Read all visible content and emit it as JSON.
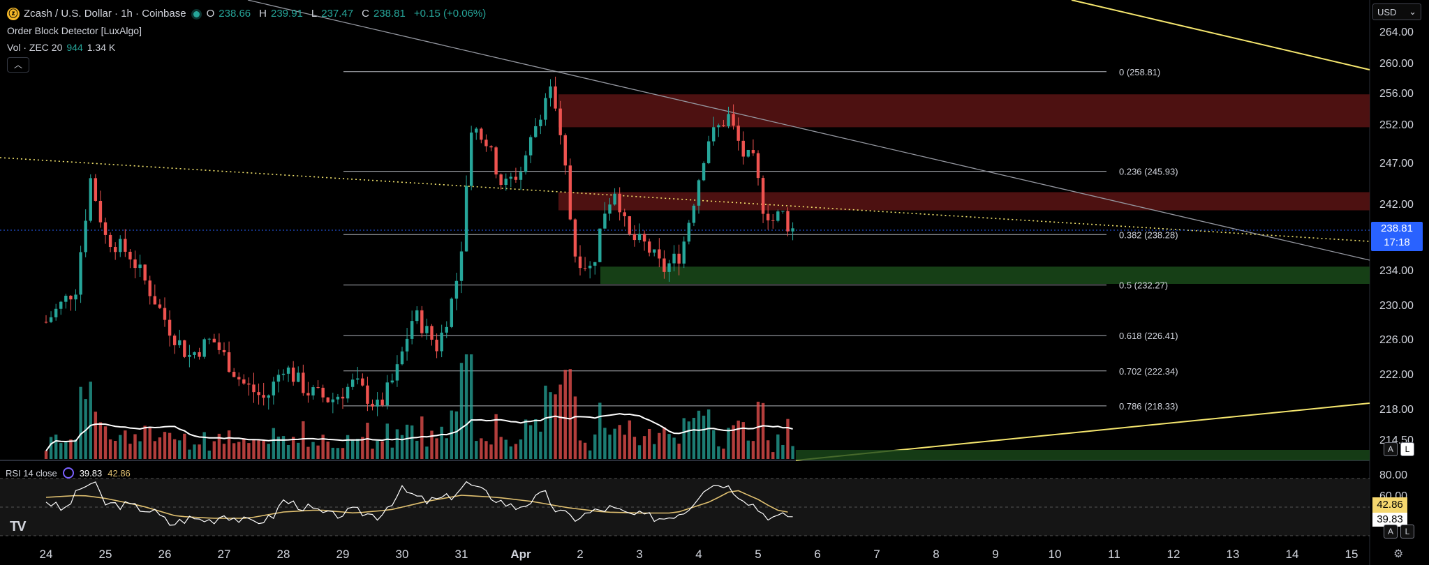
{
  "header": {
    "symbol_icon": "zcash-coin-icon",
    "title": "Zcash / U.S. Dollar · 1h · Coinbase",
    "open_label": "O",
    "open": "238.66",
    "high_label": "H",
    "high": "239.91",
    "low_label": "L",
    "low": "237.47",
    "close_label": "C",
    "close": "238.81",
    "change": "+0.15 (+0.06%)",
    "indicator": "Order Block Detector [LuxAlgo]",
    "vol_label": "Vol · ZEC 20",
    "vol_1": "944",
    "vol_2": "1.34 K",
    "collapse_icon": "chevron-up-icon"
  },
  "currency_select": {
    "value": "USD",
    "icon": "chevron-down-icon"
  },
  "price_tag": {
    "price": "238.81",
    "countdown": "17:18",
    "color": "#2962ff"
  },
  "rsi": {
    "label": "RSI 14 close",
    "value": "39.83",
    "ma_value": "42.86",
    "tag_ma": "42.86",
    "tag_rsi": "39.83",
    "axis": [
      "80.00",
      "60.00"
    ]
  },
  "scale_buttons": {
    "auto": "A",
    "log": "L"
  },
  "logo": "TV",
  "colors": {
    "up": "#26a69a",
    "down": "#ef5350",
    "fib": "#d1d4dc",
    "trend_yellow": "#f5e66e",
    "rsi_line": "#ffffff",
    "rsi_ma": "#e0c070",
    "bear_ob": "#5a1414",
    "bull_ob": "#1a4a1a",
    "accent": "#2962ff"
  },
  "chart_data": {
    "type": "candlestick",
    "title": "Zcash / U.S. Dollar · 1h · Coinbase",
    "y_ticks": [
      "264.00",
      "260.00",
      "256.00",
      "252.00",
      "247.00",
      "242.00",
      "238.81",
      "234.00",
      "230.00",
      "226.00",
      "222.00",
      "218.00",
      "214.50"
    ],
    "x_ticks": [
      "24",
      "25",
      "26",
      "27",
      "28",
      "29",
      "30",
      "31",
      "Apr",
      "2",
      "3",
      "4",
      "5",
      "6",
      "7",
      "8",
      "9",
      "10",
      "11",
      "12",
      "13",
      "14",
      "15"
    ],
    "fib_levels": [
      {
        "label": "0 (258.81)",
        "price": 258.81
      },
      {
        "label": "0.236 (245.93)",
        "price": 245.93
      },
      {
        "label": "0.382 (238.28)",
        "price": 238.28
      },
      {
        "label": "0.5 (232.27)",
        "price": 232.27
      },
      {
        "label": "0.618 (226.41)",
        "price": 226.41
      },
      {
        "label": "0.702 (222.34)",
        "price": 222.34
      },
      {
        "label": "0.786 (218.33)",
        "price": 218.33
      }
    ],
    "order_blocks": [
      {
        "kind": "bearish",
        "top": 255.8,
        "bottom": 251.6
      },
      {
        "kind": "bearish",
        "top": 243.4,
        "bottom": 241.2
      },
      {
        "kind": "bullish",
        "top": 234.4,
        "bottom": 232.4
      }
    ],
    "close_path": [
      [
        24.0,
        228
      ],
      [
        24.5,
        232
      ],
      [
        24.75,
        245
      ],
      [
        25.0,
        238
      ],
      [
        25.4,
        236
      ],
      [
        25.8,
        231
      ],
      [
        26.1,
        227
      ],
      [
        26.4,
        224
      ],
      [
        26.8,
        226
      ],
      [
        27.0,
        224
      ],
      [
        27.3,
        221
      ],
      [
        27.7,
        219
      ],
      [
        28.0,
        223
      ],
      [
        28.4,
        220
      ],
      [
        28.8,
        219
      ],
      [
        29.2,
        221
      ],
      [
        29.6,
        218
      ],
      [
        29.9,
        222
      ],
      [
        30.2,
        229
      ],
      [
        30.6,
        225
      ],
      [
        30.9,
        232
      ],
      [
        31.05,
        240
      ],
      [
        31.15,
        252
      ],
      [
        31.4,
        250
      ],
      [
        31.7,
        244
      ],
      [
        32.0,
        246
      ],
      [
        32.3,
        253
      ],
      [
        32.5,
        257
      ],
      [
        32.75,
        246
      ],
      [
        32.9,
        236
      ],
      [
        33.2,
        234
      ],
      [
        33.4,
        241
      ],
      [
        33.6,
        244
      ],
      [
        33.8,
        238
      ],
      [
        34.1,
        237
      ],
      [
        34.4,
        234
      ],
      [
        34.7,
        236
      ],
      [
        34.9,
        242
      ],
      [
        35.15,
        250
      ],
      [
        35.5,
        253
      ],
      [
        35.75,
        248
      ],
      [
        35.95,
        247
      ],
      [
        36.05,
        242
      ],
      [
        36.25,
        240
      ],
      [
        36.4,
        241
      ],
      [
        36.5,
        239.5
      ],
      [
        36.6,
        238.8
      ]
    ],
    "rsi_path": [
      [
        24.0,
        55
      ],
      [
        24.3,
        45
      ],
      [
        24.6,
        68
      ],
      [
        24.8,
        72
      ],
      [
        25.0,
        52
      ],
      [
        25.4,
        50
      ],
      [
        25.8,
        45
      ],
      [
        26.1,
        32
      ],
      [
        26.4,
        38
      ],
      [
        26.8,
        36
      ],
      [
        27.0,
        42
      ],
      [
        27.4,
        34
      ],
      [
        27.8,
        38
      ],
      [
        28.0,
        55
      ],
      [
        28.4,
        48
      ],
      [
        28.8,
        40
      ],
      [
        29.2,
        45
      ],
      [
        29.6,
        40
      ],
      [
        30.0,
        65
      ],
      [
        30.4,
        54
      ],
      [
        30.8,
        58
      ],
      [
        31.1,
        72
      ],
      [
        31.3,
        65
      ],
      [
        31.6,
        56
      ],
      [
        31.9,
        48
      ],
      [
        32.2,
        55
      ],
      [
        32.4,
        62
      ],
      [
        32.6,
        45
      ],
      [
        32.9,
        38
      ],
      [
        33.2,
        44
      ],
      [
        33.5,
        48
      ],
      [
        33.8,
        42
      ],
      [
        34.1,
        40
      ],
      [
        34.4,
        38
      ],
      [
        34.8,
        46
      ],
      [
        35.1,
        68
      ],
      [
        35.4,
        72
      ],
      [
        35.7,
        60
      ],
      [
        35.9,
        52
      ],
      [
        36.1,
        42
      ],
      [
        36.3,
        38
      ],
      [
        36.5,
        41
      ],
      [
        36.6,
        39.83
      ]
    ],
    "rsi_ma_path": [
      [
        24.0,
        58
      ],
      [
        24.6,
        60
      ],
      [
        25.0,
        57
      ],
      [
        25.6,
        50
      ],
      [
        26.2,
        40
      ],
      [
        26.8,
        38
      ],
      [
        27.4,
        38
      ],
      [
        28.0,
        44
      ],
      [
        28.6,
        46
      ],
      [
        29.2,
        43
      ],
      [
        29.8,
        46
      ],
      [
        30.4,
        54
      ],
      [
        31.0,
        60
      ],
      [
        31.6,
        58
      ],
      [
        32.2,
        54
      ],
      [
        32.8,
        48
      ],
      [
        33.4,
        44
      ],
      [
        34.0,
        43
      ],
      [
        34.6,
        43
      ],
      [
        35.2,
        54
      ],
      [
        35.6,
        66
      ],
      [
        36.0,
        56
      ],
      [
        36.3,
        46
      ],
      [
        36.6,
        42.86
      ]
    ]
  }
}
